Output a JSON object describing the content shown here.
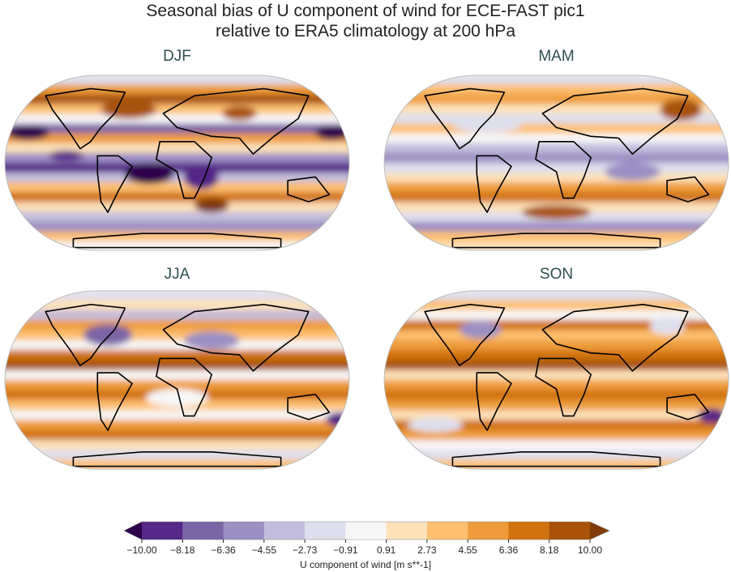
{
  "title_line1": "Seasonal bias of U component of wind for ECE-FAST pic1",
  "title_line2": "relative to ERA5 climatology at 200 hPa",
  "panels": [
    {
      "label": "DJF"
    },
    {
      "label": "MAM"
    },
    {
      "label": "JJA"
    },
    {
      "label": "SON"
    }
  ],
  "colorbar": {
    "label": "U component of wind [m s**-1]",
    "ticks": [
      "−10.00",
      "−8.18",
      "−6.36",
      "−4.55",
      "−2.73",
      "−0.91",
      "0.91",
      "2.73",
      "4.55",
      "6.36",
      "8.18",
      "10.00"
    ],
    "colors": [
      "#542788",
      "#7b65a5",
      "#9b8fc3",
      "#c2bddc",
      "#dedfed",
      "#f7f7f7",
      "#fde1b9",
      "#fdbf70",
      "#ee9c3b",
      "#d0720f",
      "#a8520a"
    ],
    "extend_low": "#2d004b",
    "extend_high": "#7f3b08",
    "range": [
      -10,
      10
    ],
    "colormap": "PuOr_r"
  }
}
